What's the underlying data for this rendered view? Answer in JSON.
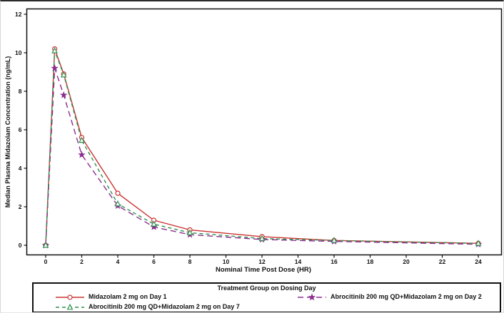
{
  "chart_data": {
    "type": "line",
    "title": "",
    "xlabel": "Nominal Time Post Dose (HR)",
    "ylabel": "Median Plasma Midazolam Concentration (ng/mL)",
    "legend_title": "Treatment Group on Dosing Day",
    "legend_position": "bottom",
    "grid": false,
    "xlim": [
      0,
      24
    ],
    "ylim": [
      0,
      12
    ],
    "x_ticks": [
      0,
      2,
      4,
      6,
      8,
      10,
      12,
      14,
      16,
      18,
      20,
      22,
      24
    ],
    "y_ticks": [
      0,
      2,
      4,
      6,
      8,
      10,
      12
    ],
    "x": [
      0,
      0.5,
      1,
      2,
      4,
      6,
      8,
      12,
      16,
      24
    ],
    "series": [
      {
        "name": "midazolam-day1",
        "label": "Midazolam 2 mg on Day 1",
        "color": "#cc3333",
        "marker": "circle-open",
        "line": "solid",
        "dash": "",
        "values": [
          0,
          10.2,
          8.9,
          5.6,
          2.7,
          1.3,
          0.8,
          0.45,
          0.25,
          0.1
        ]
      },
      {
        "name": "abrocitinib-day2",
        "label": "Abrocitinib 200 mg QD+Midazolam 2 mg on Day 2",
        "color": "#8a2d8f",
        "marker": "star-filled",
        "line": "long-dash",
        "dash": "8,5",
        "values": [
          0,
          9.2,
          7.8,
          4.7,
          2.05,
          0.95,
          0.55,
          0.3,
          0.2,
          0.05
        ]
      },
      {
        "name": "abrocitinib-day7",
        "label": "Abrocitinib 200 mg QD+Midazolam 2 mg on Day 7",
        "color": "#2f9150",
        "marker": "triangle-open",
        "line": "dash",
        "dash": "5,4",
        "values": [
          0,
          10.1,
          8.85,
          5.45,
          2.15,
          1.1,
          0.65,
          0.35,
          0.25,
          0.1
        ]
      }
    ]
  }
}
